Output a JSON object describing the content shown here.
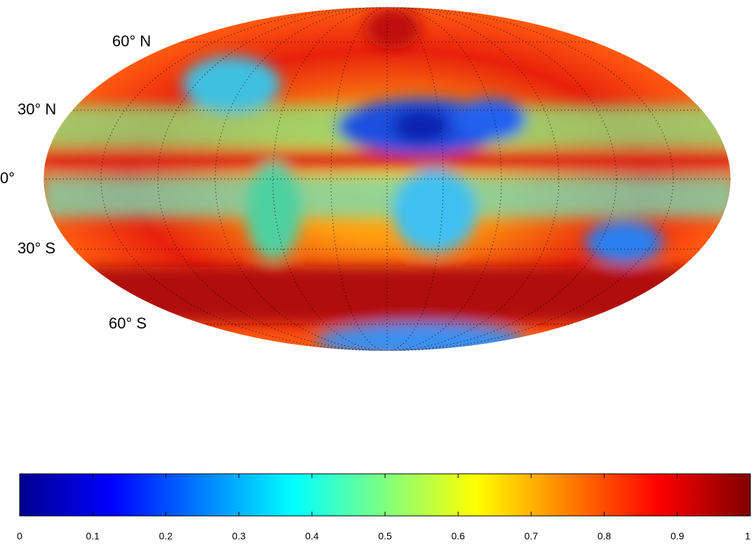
{
  "map": {
    "lat_labels": [
      "60° N",
      "30° N",
      "0°",
      "30° S",
      "60° S"
    ]
  },
  "colorbar": {
    "lim": [
      0,
      1
    ],
    "ticks": [
      0,
      0.1,
      0.2,
      0.3,
      0.4,
      0.5,
      0.6,
      0.7,
      0.8,
      0.9,
      1
    ]
  }
}
